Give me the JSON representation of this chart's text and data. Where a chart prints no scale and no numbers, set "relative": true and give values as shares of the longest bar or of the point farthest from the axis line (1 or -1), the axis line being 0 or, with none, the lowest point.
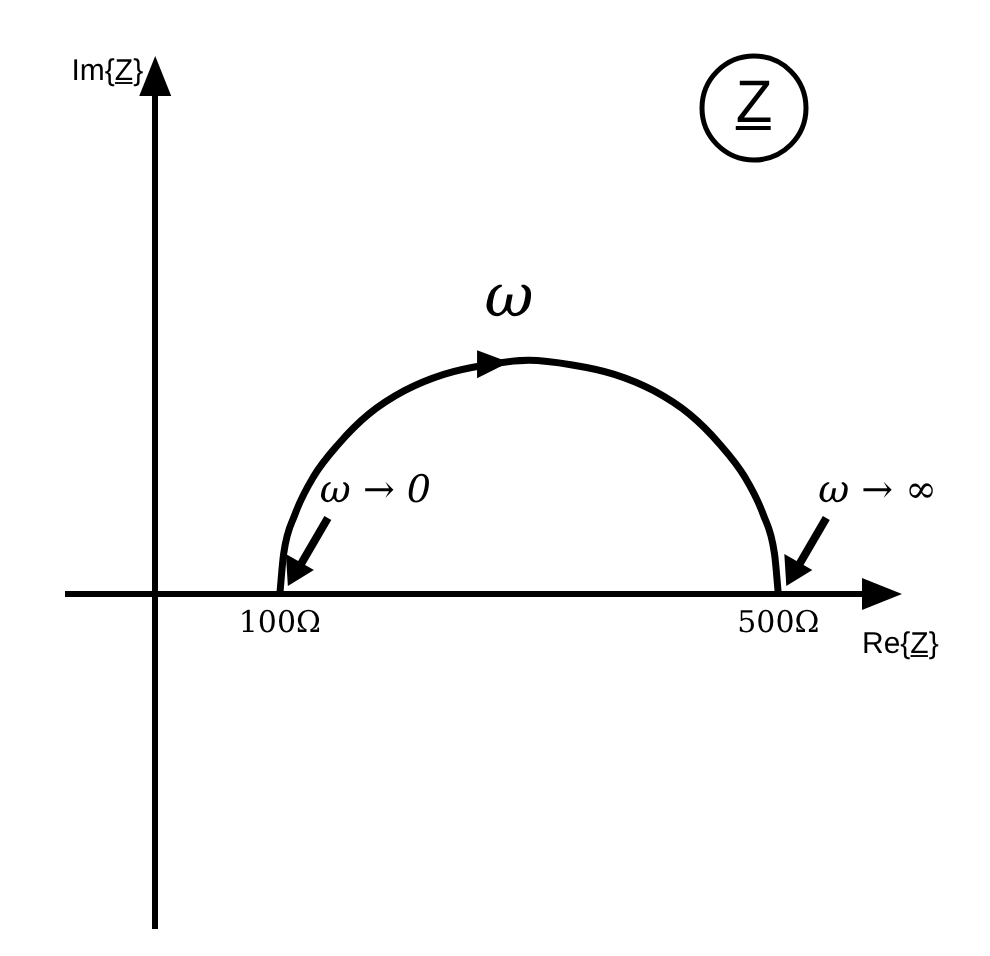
{
  "chart_data": {
    "type": "line",
    "xlabel": "Re{Z̲}",
    "annotations": [
      "Im{Z̲}",
      "Z̲",
      {
        "text": "ω",
        "x": 300,
        "y": 1
      },
      {
        "text": "ω → 0",
        "x": 100,
        "y": 0
      },
      {
        "text": "ω → ∞",
        "x": 500,
        "y": 0
      }
    ],
    "relative": true,
    "x": [
      100,
      103.0,
      112.1,
      126.8,
      146.8,
      171.4,
      200,
      231.6,
      265.3,
      300,
      334.7,
      368.4,
      400,
      428.6,
      453.2,
      473.2,
      487.9,
      497.0,
      500
    ],
    "values": [
      0,
      0.17,
      0.34,
      0.5,
      0.64,
      0.77,
      0.87,
      0.94,
      0.98,
      1,
      0.98,
      0.94,
      0.87,
      0.77,
      0.64,
      0.5,
      0.34,
      0.17,
      0
    ],
    "color": "#000000",
    "xlim": [
      -70,
      580
    ],
    "xticks": [
      {
        "value": 100,
        "label": "100Ω"
      },
      {
        "value": 500,
        "label": "500Ω"
      }
    ],
    "marker": "none",
    "line_style": "solid"
  }
}
